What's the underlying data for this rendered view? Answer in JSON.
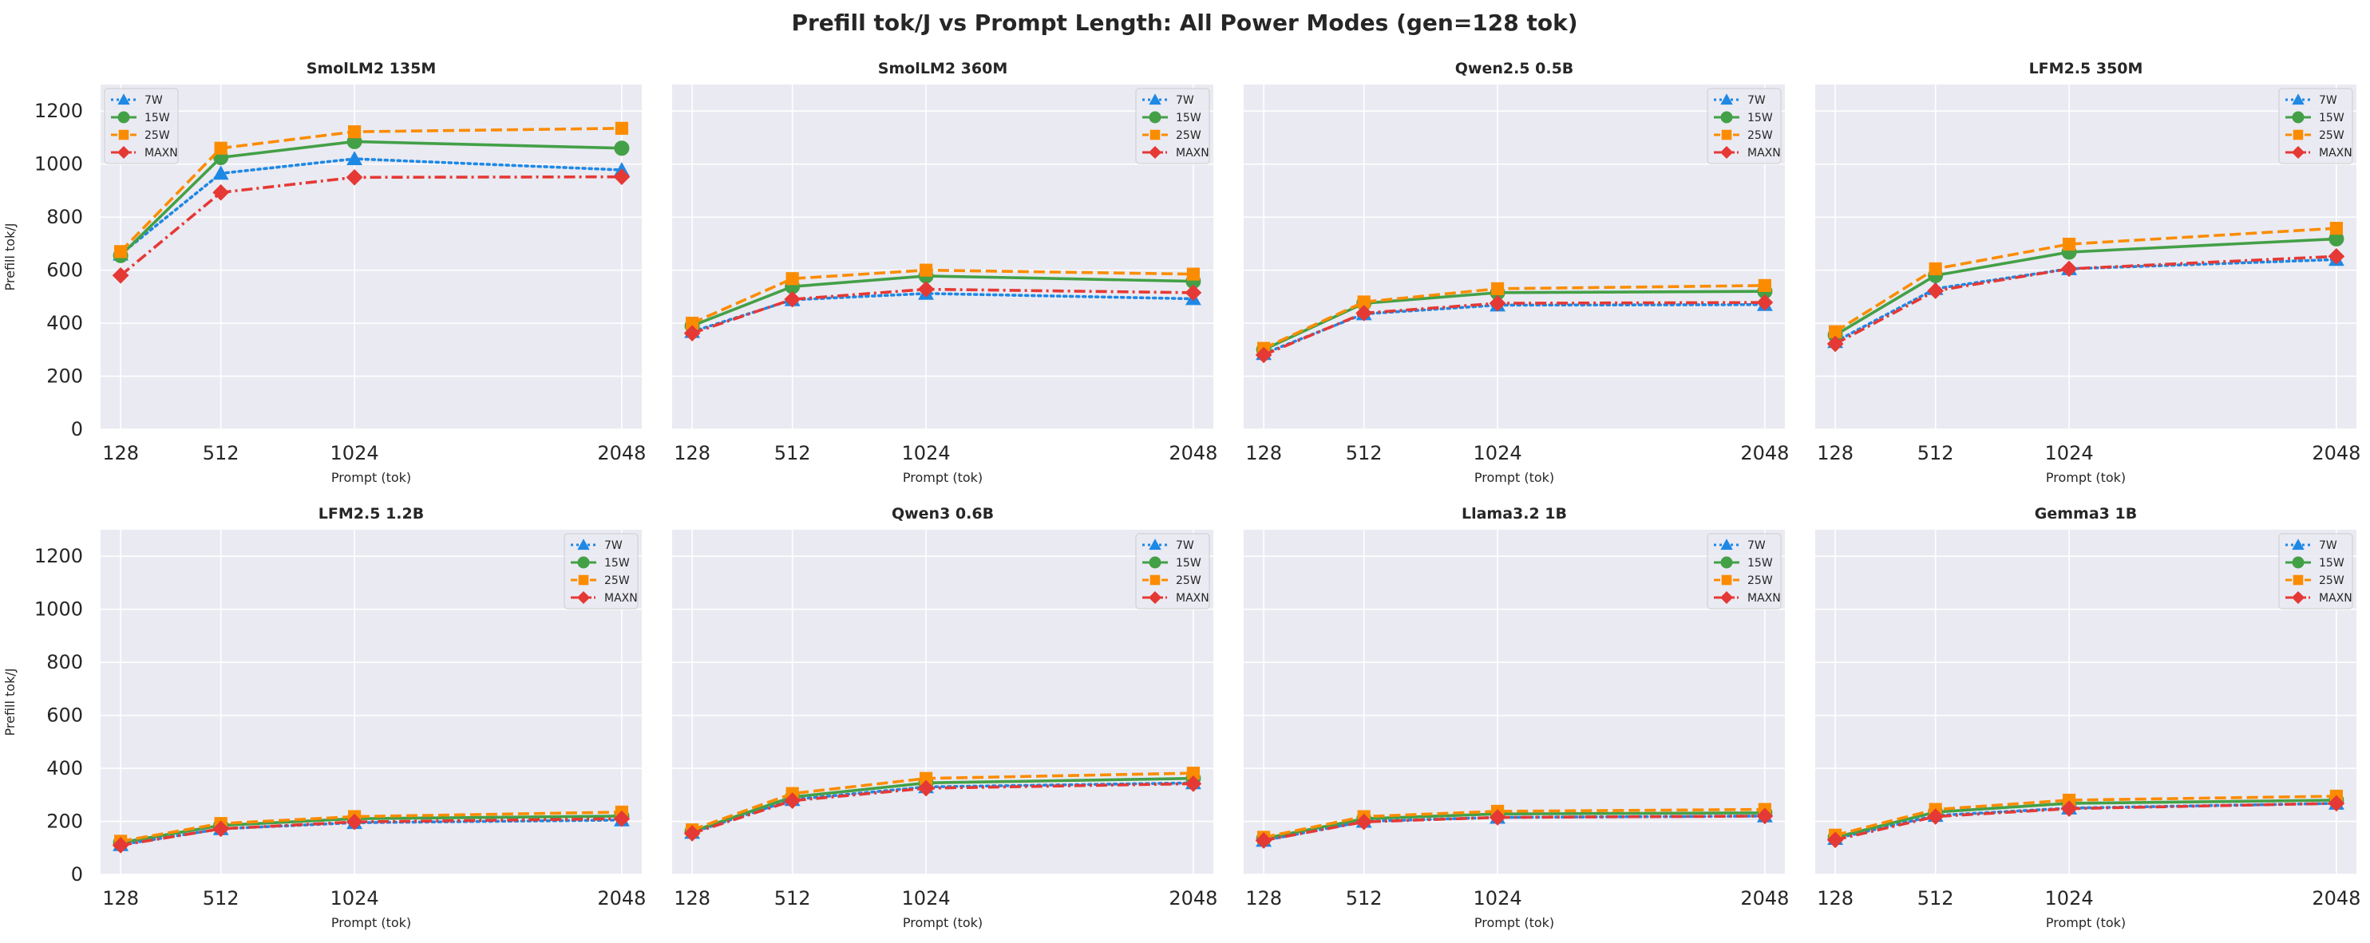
{
  "figure": {
    "title": "Prefill tok/J vs Prompt Length: All Power Modes (gen=128 tok)"
  },
  "styles": {
    "background": "#eaeaf2",
    "grid": "#ffffff",
    "series": [
      {
        "name": "7W",
        "color": "#1e88e5",
        "dash": "dotted",
        "marker": "triangle"
      },
      {
        "name": "15W",
        "color": "#43a047",
        "dash": "solid",
        "marker": "circle"
      },
      {
        "name": "25W",
        "color": "#fb8c00",
        "dash": "dashed",
        "marker": "square"
      },
      {
        "name": "MAXN",
        "color": "#e53935",
        "dash": "dashdot",
        "marker": "diamond"
      }
    ]
  },
  "chart_data": [
    {
      "type": "line",
      "title": "SmolLM2 135M",
      "xlabel": "Prompt (tok)",
      "ylabel": "Prefill tok/J",
      "x": [
        128,
        512,
        1024,
        2048
      ],
      "xticks": [
        "128",
        "512",
        "1024",
        "2048"
      ],
      "ylim": [
        0,
        1300
      ],
      "yticks": [
        "0",
        "200",
        "400",
        "600",
        "800",
        "1000",
        "1200"
      ],
      "legend": "top-left",
      "grid": true,
      "series": [
        {
          "name": "7W",
          "values": [
            660,
            965,
            1020,
            978
          ]
        },
        {
          "name": "15W",
          "values": [
            655,
            1025,
            1085,
            1060
          ]
        },
        {
          "name": "25W",
          "values": [
            670,
            1060,
            1122,
            1135
          ]
        },
        {
          "name": "MAXN",
          "values": [
            580,
            893,
            950,
            952
          ]
        }
      ]
    },
    {
      "type": "line",
      "title": "SmolLM2 360M",
      "xlabel": "Prompt (tok)",
      "ylabel": "",
      "x": [
        128,
        512,
        1024,
        2048
      ],
      "xticks": [
        "128",
        "512",
        "1024",
        "2048"
      ],
      "ylim": [
        0,
        1300
      ],
      "yticks": [],
      "legend": "top-right",
      "grid": true,
      "series": [
        {
          "name": "7W",
          "values": [
            368,
            488,
            512,
            492
          ]
        },
        {
          "name": "15W",
          "values": [
            390,
            538,
            578,
            558
          ]
        },
        {
          "name": "25W",
          "values": [
            400,
            568,
            600,
            585
          ]
        },
        {
          "name": "MAXN",
          "values": [
            362,
            490,
            528,
            515
          ]
        }
      ]
    },
    {
      "type": "line",
      "title": "Qwen2.5 0.5B",
      "xlabel": "Prompt (tok)",
      "ylabel": "",
      "x": [
        128,
        512,
        1024,
        2048
      ],
      "xticks": [
        "128",
        "512",
        "1024",
        "2048"
      ],
      "ylim": [
        0,
        1300
      ],
      "yticks": [],
      "legend": "top-right",
      "grid": true,
      "series": [
        {
          "name": "7W",
          "values": [
            285,
            435,
            468,
            470
          ]
        },
        {
          "name": "15W",
          "values": [
            300,
            475,
            515,
            520
          ]
        },
        {
          "name": "25W",
          "values": [
            305,
            480,
            530,
            542
          ]
        },
        {
          "name": "MAXN",
          "values": [
            280,
            438,
            475,
            478
          ]
        }
      ]
    },
    {
      "type": "line",
      "title": "LFM2.5 350M",
      "xlabel": "Prompt (tok)",
      "ylabel": "",
      "x": [
        128,
        512,
        1024,
        2048
      ],
      "xticks": [
        "128",
        "512",
        "1024",
        "2048"
      ],
      "ylim": [
        0,
        1300
      ],
      "yticks": [],
      "legend": "top-right",
      "grid": true,
      "series": [
        {
          "name": "7W",
          "values": [
            330,
            530,
            605,
            640
          ]
        },
        {
          "name": "15W",
          "values": [
            355,
            580,
            668,
            718
          ]
        },
        {
          "name": "25W",
          "values": [
            368,
            605,
            698,
            758
          ]
        },
        {
          "name": "MAXN",
          "values": [
            322,
            522,
            605,
            652
          ]
        }
      ]
    },
    {
      "type": "line",
      "title": "LFM2.5 1.2B",
      "xlabel": "Prompt (tok)",
      "ylabel": "Prefill tok/J",
      "x": [
        128,
        512,
        1024,
        2048
      ],
      "xticks": [
        "128",
        "512",
        "1024",
        "2048"
      ],
      "ylim": [
        0,
        1300
      ],
      "yticks": [
        "0",
        "200",
        "400",
        "600",
        "800",
        "1000",
        "1200"
      ],
      "legend": "top-right",
      "grid": true,
      "series": [
        {
          "name": "7W",
          "values": [
            112,
            172,
            195,
            205
          ]
        },
        {
          "name": "15W",
          "values": [
            120,
            185,
            210,
            220
          ]
        },
        {
          "name": "25W",
          "values": [
            125,
            192,
            218,
            235
          ]
        },
        {
          "name": "MAXN",
          "values": [
            110,
            172,
            198,
            210
          ]
        }
      ]
    },
    {
      "type": "line",
      "title": "Qwen3 0.6B",
      "xlabel": "Prompt (tok)",
      "ylabel": "",
      "x": [
        128,
        512,
        1024,
        2048
      ],
      "xticks": [
        "128",
        "512",
        "1024",
        "2048"
      ],
      "ylim": [
        0,
        1300
      ],
      "yticks": [],
      "legend": "top-right",
      "grid": true,
      "series": [
        {
          "name": "7W",
          "values": [
            158,
            282,
            330,
            345
          ]
        },
        {
          "name": "15W",
          "values": [
            162,
            292,
            345,
            362
          ]
        },
        {
          "name": "25W",
          "values": [
            168,
            305,
            362,
            382
          ]
        },
        {
          "name": "MAXN",
          "values": [
            155,
            278,
            325,
            342
          ]
        }
      ]
    },
    {
      "type": "line",
      "title": "Llama3.2 1B",
      "xlabel": "Prompt (tok)",
      "ylabel": "",
      "x": [
        128,
        512,
        1024,
        2048
      ],
      "xticks": [
        "128",
        "512",
        "1024",
        "2048"
      ],
      "ylim": [
        0,
        1300
      ],
      "yticks": [],
      "legend": "top-right",
      "grid": true,
      "series": [
        {
          "name": "7W",
          "values": [
            128,
            200,
            215,
            220
          ]
        },
        {
          "name": "15W",
          "values": [
            135,
            210,
            228,
            232
          ]
        },
        {
          "name": "25W",
          "values": [
            140,
            218,
            238,
            245
          ]
        },
        {
          "name": "MAXN",
          "values": [
            128,
            198,
            215,
            220
          ]
        }
      ]
    },
    {
      "type": "line",
      "title": "Gemma3 1B",
      "xlabel": "Prompt (tok)",
      "ylabel": "",
      "x": [
        128,
        512,
        1024,
        2048
      ],
      "xticks": [
        "128",
        "512",
        "1024",
        "2048"
      ],
      "ylim": [
        0,
        1300
      ],
      "yticks": [],
      "legend": "top-right",
      "grid": true,
      "series": [
        {
          "name": "7W",
          "values": [
            135,
            222,
            250,
            268
          ]
        },
        {
          "name": "15W",
          "values": [
            140,
            235,
            268,
            280
          ]
        },
        {
          "name": "25W",
          "values": [
            148,
            245,
            280,
            295
          ]
        },
        {
          "name": "MAXN",
          "values": [
            130,
            218,
            248,
            268
          ]
        }
      ]
    }
  ]
}
